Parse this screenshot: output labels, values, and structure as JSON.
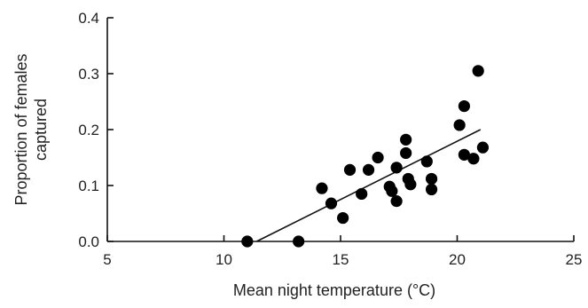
{
  "chart_data": {
    "type": "scatter",
    "title": "",
    "xlabel": "Mean night temperature (°C)",
    "ylabel": [
      "Proportion of females",
      "captured"
    ],
    "xlim": [
      5,
      25
    ],
    "ylim": [
      0.0,
      0.4
    ],
    "xticks": [
      5,
      10,
      15,
      20,
      25
    ],
    "xtick_labels": [
      "5",
      "10",
      "15",
      "20",
      "25"
    ],
    "yticks": [
      0.0,
      0.1,
      0.2,
      0.3,
      0.4
    ],
    "ytick_labels": [
      "0.0",
      "0.1",
      "0.2",
      "0.3",
      "0.4"
    ],
    "grid": false,
    "legend": "none",
    "point_color": "#000000",
    "points": [
      {
        "x": 11.0,
        "y": 0.0
      },
      {
        "x": 13.2,
        "y": 0.0
      },
      {
        "x": 14.2,
        "y": 0.095
      },
      {
        "x": 14.6,
        "y": 0.068
      },
      {
        "x": 15.1,
        "y": 0.042
      },
      {
        "x": 15.4,
        "y": 0.128
      },
      {
        "x": 15.9,
        "y": 0.085
      },
      {
        "x": 16.2,
        "y": 0.128
      },
      {
        "x": 16.6,
        "y": 0.15
      },
      {
        "x": 17.1,
        "y": 0.098
      },
      {
        "x": 17.2,
        "y": 0.09
      },
      {
        "x": 17.4,
        "y": 0.072
      },
      {
        "x": 17.4,
        "y": 0.132
      },
      {
        "x": 17.8,
        "y": 0.182
      },
      {
        "x": 17.8,
        "y": 0.158
      },
      {
        "x": 17.9,
        "y": 0.112
      },
      {
        "x": 18.0,
        "y": 0.102
      },
      {
        "x": 18.7,
        "y": 0.143
      },
      {
        "x": 18.9,
        "y": 0.112
      },
      {
        "x": 18.9,
        "y": 0.093
      },
      {
        "x": 20.1,
        "y": 0.208
      },
      {
        "x": 20.3,
        "y": 0.242
      },
      {
        "x": 20.3,
        "y": 0.155
      },
      {
        "x": 20.7,
        "y": 0.148
      },
      {
        "x": 20.9,
        "y": 0.305
      },
      {
        "x": 21.1,
        "y": 0.168
      }
    ],
    "fit_line": {
      "x": [
        11.4,
        21.0
      ],
      "y": [
        0.0,
        0.2
      ]
    }
  }
}
